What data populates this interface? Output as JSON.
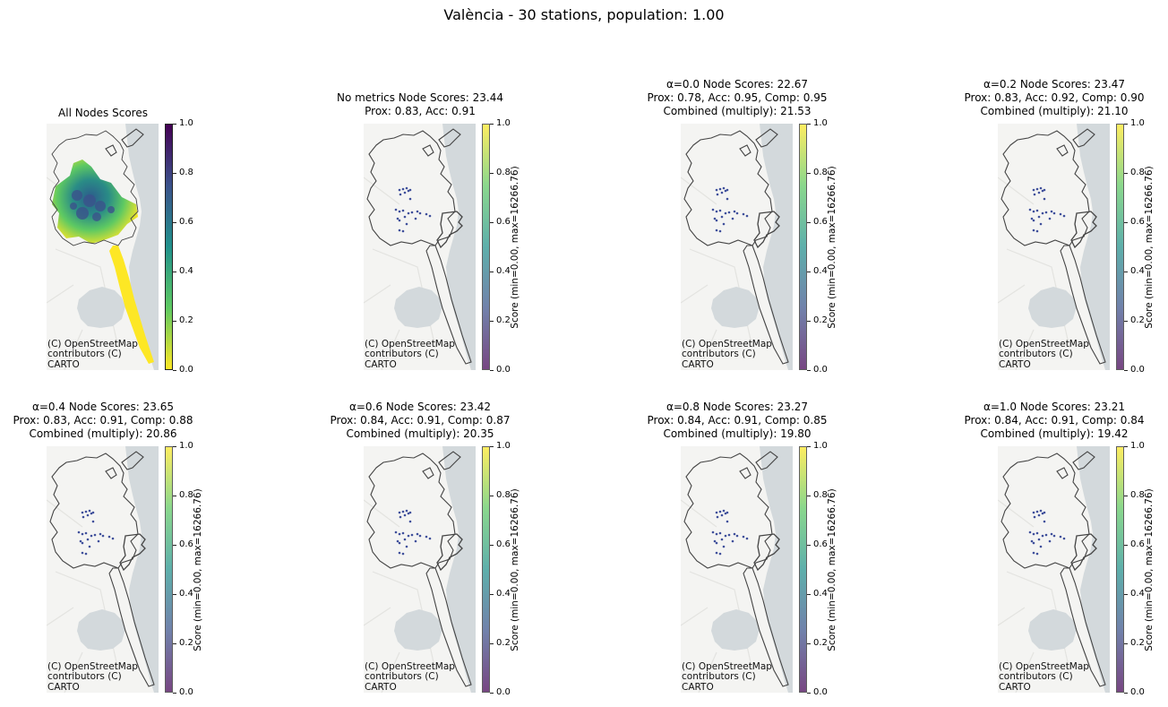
{
  "suptitle": "València - 30 stations, population: 1.00",
  "colors": {
    "sea": "#d3d9dc",
    "land": "#f4f4f2",
    "boundary": "#444444",
    "station_dot": "#3f4f9b",
    "cmap_viridis": [
      "#440154",
      "#3b528b",
      "#21918c",
      "#5ec962",
      "#fde725"
    ]
  },
  "attribution": "(C) OpenStreetMap contributors (C) CARTO",
  "colorbar_ticks": [
    "0.0",
    "0.2",
    "0.4",
    "0.6",
    "0.8",
    "1.0"
  ],
  "panels": [
    {
      "title_lines": [
        "All Nodes Scores"
      ],
      "kind": "all-nodes",
      "cmap": "viridis_r",
      "cbar_label": ""
    },
    {
      "title_lines": [
        "No metrics Node Scores: 23.44",
        "Prox: 0.83, Acc: 0.91"
      ],
      "kind": "stations",
      "cmap": "viridis",
      "cbar_label": "Score (min=0.00, max=16266.76)"
    },
    {
      "title_lines": [
        "α=0.0 Node Scores: 22.67",
        "Prox: 0.78, Acc: 0.95, Comp: 0.95",
        "Combined (multiply): 21.53"
      ],
      "kind": "stations",
      "cmap": "viridis",
      "cbar_label": "Score (min=0.00, max=16266.76)"
    },
    {
      "title_lines": [
        "α=0.2 Node Scores: 23.47",
        "Prox: 0.83, Acc: 0.92, Comp: 0.90",
        "Combined (multiply): 21.10"
      ],
      "kind": "stations",
      "cmap": "viridis",
      "cbar_label": "Score (min=0.00, max=16266.76)"
    },
    {
      "title_lines": [
        "α=0.4 Node Scores: 23.65",
        "Prox: 0.83, Acc: 0.91, Comp: 0.88",
        "Combined (multiply): 20.86"
      ],
      "kind": "stations",
      "cmap": "viridis",
      "cbar_label": "Score (min=0.00, max=16266.76)"
    },
    {
      "title_lines": [
        "α=0.6 Node Scores: 23.42",
        "Prox: 0.84, Acc: 0.91, Comp: 0.87",
        "Combined (multiply): 20.35"
      ],
      "kind": "stations",
      "cmap": "viridis",
      "cbar_label": "Score (min=0.00, max=16266.76)"
    },
    {
      "title_lines": [
        "α=0.8 Node Scores: 23.27",
        "Prox: 0.84, Acc: 0.91, Comp: 0.85",
        "Combined (multiply): 19.80"
      ],
      "kind": "stations",
      "cmap": "viridis",
      "cbar_label": "Score (min=0.00, max=16266.76)"
    },
    {
      "title_lines": [
        "α=1.0 Node Scores: 23.21",
        "Prox: 0.84, Acc: 0.91, Comp: 0.84",
        "Combined (multiply): 19.42"
      ],
      "kind": "stations",
      "cmap": "viridis",
      "cbar_label": "Score (min=0.00, max=16266.76)"
    }
  ]
}
